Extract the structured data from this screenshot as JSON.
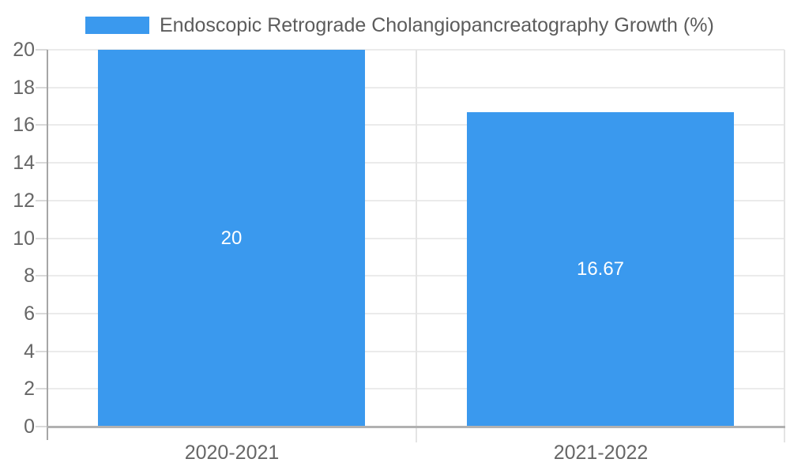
{
  "chart_data": {
    "type": "bar",
    "title": "Endoscopic Retrograde Cholangiopancreatography Growth (%)",
    "categories": [
      "2020-2021",
      "2021-2022"
    ],
    "values": [
      20,
      16.67
    ],
    "value_labels": [
      "20",
      "16.67"
    ],
    "xlabel": "",
    "ylabel": "",
    "ylim": [
      0,
      20
    ],
    "yticks": [
      0,
      2,
      4,
      6,
      8,
      10,
      12,
      14,
      16,
      18,
      20
    ],
    "grid": true,
    "legend_position": "top-left",
    "bar_color": "#3a99ee"
  },
  "colors": {
    "bar": "#3a99ee",
    "title_text": "#5c5c5c",
    "axis_label_text": "#666666",
    "bar_label_text": "#ffffff",
    "gridline": "#ebebeb",
    "axis_line": "#b1b1b1"
  }
}
